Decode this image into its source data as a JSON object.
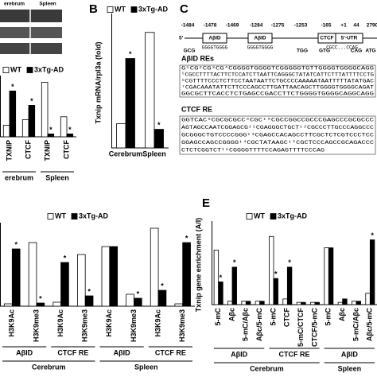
{
  "blot": {
    "groups": [
      "erebrum",
      "Spleen"
    ]
  },
  "chart_data": [
    {
      "type": "bar",
      "ylim": [
        0,
        1
      ],
      "groups": [
        {
          "name": "erebrum",
          "categories": [
            "TXNIP",
            "CTCF"
          ]
        },
        {
          "name": "Spleen",
          "categories": [
            "TXNIP",
            "CTCF"
          ]
        }
      ],
      "series": [
        {
          "name": "WT",
          "color": "#ffffff",
          "values": [
            0.2,
            0.3,
            0.95,
            0.35
          ],
          "significance": [
            null,
            null,
            null,
            null
          ]
        },
        {
          "name": "3xTg-AD",
          "color": "#000000",
          "values": [
            0.8,
            0.55,
            0.05,
            0.05
          ],
          "significance": [
            "*",
            "*",
            "*",
            "*"
          ]
        }
      ]
    },
    {
      "type": "bar",
      "panel": "B",
      "ylabel": "Txnip mRNA/rpl3a (fold)",
      "ylim": [
        0,
        7
      ],
      "categories": [
        "Cerebrum",
        "Spleen"
      ],
      "series": [
        {
          "name": "WT",
          "color": "#ffffff",
          "values": [
            1.3,
            6.2
          ],
          "significance": [
            null,
            null
          ]
        },
        {
          "name": "3xTg-AD",
          "color": "#000000",
          "values": [
            4.8,
            1.0
          ],
          "significance": [
            "*",
            "*"
          ]
        }
      ]
    },
    {
      "type": "bar",
      "ylim": [
        0,
        1
      ],
      "groups": [
        {
          "name": "Cerebrum",
          "subgroups": [
            {
              "name": "AβID",
              "categories": [
                "H3K9Ac",
                "H3K9me3"
              ]
            },
            {
              "name": "CTCF RE",
              "categories": [
                "H3K9Ac",
                "H3K9me3"
              ]
            }
          ]
        },
        {
          "name": "Spleen",
          "subgroups": [
            {
              "name": "AβID",
              "categories": [
                "H3K9Ac",
                "H3K9me3"
              ]
            },
            {
              "name": "CTCF RE",
              "categories": [
                "H3K9Ac",
                "H3K9me3"
              ]
            }
          ]
        }
      ],
      "series": [
        {
          "name": "WT",
          "color": "#ffffff",
          "values": [
            0.03,
            0.8,
            0.05,
            0.65,
            0.75,
            0.15,
            0.98,
            0.03
          ],
          "significance": [
            null,
            null,
            null,
            null,
            null,
            null,
            null,
            null
          ]
        },
        {
          "name": "3xTg-AD",
          "color": "#000000",
          "values": [
            0.72,
            0.04,
            0.55,
            0.13,
            0.75,
            0.1,
            0.2,
            0.8
          ],
          "significance": [
            "*",
            "*",
            "*",
            "*",
            null,
            "*",
            "*",
            "*"
          ]
        }
      ]
    },
    {
      "type": "bar",
      "panel": "E",
      "ylabel": "Txnip gene enrichment (A/I)",
      "ylim": [
        0,
        0.7
      ],
      "groups": [
        {
          "name": "Cerebrum",
          "subgroups": [
            {
              "name": "AβID",
              "categories": [
                "5-mC",
                "Aβc",
                "5-mC/Aβc",
                "Aβc/5-mC"
              ]
            },
            {
              "name": "CTCF RE",
              "categories": [
                "5-mC",
                "CTCF",
                "5-mC/CTCF",
                "CTCF/5-mC"
              ]
            }
          ]
        },
        {
          "name": "Spleen",
          "subgroups": [
            {
              "name": "AβID",
              "categories": [
                "5-mC",
                "Aβc",
                "5-mC/Aβc",
                "Aβc/5-mC"
              ]
            }
          ]
        }
      ],
      "series": [
        {
          "name": "WT",
          "color": "#ffffff",
          "values": [
            0.48,
            0.03,
            0.03,
            0.03,
            0.6,
            0.05,
            0.02,
            0.02,
            0.5,
            0.02,
            0.03,
            0.1
          ],
          "significance": [
            null,
            null,
            null,
            null,
            null,
            null,
            null,
            null,
            null,
            null,
            null,
            null
          ]
        },
        {
          "name": "3xTg-AD",
          "color": "#000000",
          "values": [
            0.2,
            0.33,
            0.03,
            0.03,
            0.23,
            0.33,
            0.02,
            0.02,
            0.5,
            0.05,
            0.03,
            0.57
          ],
          "significance": [
            "*",
            "*",
            null,
            null,
            "*",
            "*",
            null,
            null,
            null,
            null,
            null,
            "*"
          ]
        }
      ]
    }
  ],
  "diagram": {
    "panel": "C",
    "end": "5'",
    "positions": [
      "-1484",
      "-1478",
      "-1469",
      "-1284",
      "-1275",
      "-1253",
      "-165",
      "+1",
      "44",
      "2790"
    ],
    "boxes": [
      "AβID",
      "AβID",
      "CTCF",
      "5'-UTR"
    ],
    "sites": [
      "GCG",
      "GGGGTGGGG",
      "GGGGTGGGG",
      "TGG",
      "GTG",
      "CGCC...CCAG",
      "CAG",
      "ATG"
    ],
    "abid_title": "AβID REs",
    "abid_lines": [
      "G¹CG²CG³CG⁴CGGGGTGGGGTCGGGGGTGTTGGGGTGGGGCAGG",
      "⁵CGCCTTTTACTTCTCCATCTTAATTCAGGGCTATATCATTCTTTATTTTCCTG",
      "⁶CGTTTTCCCTCTTCCTAATAATTCTGCCCCAAAAATAATTTTTATATGAC",
      "⁷CGACAAATATTCTTCCCAGCCTTGATTAACAGCTTGGGGTGGGGCAGAT",
      "GGCGCTTCACCTCTGAGCCGACCTTCTGGGGTGGGGCAGGCAGG"
    ],
    "ctcf_title": "CTCF RE",
    "ctcf_lines": [
      "GGTCAC⁸CGCGCGCC⁹CGC¹⁰CGCCGGCCGCCCGAGCCCGCGCCC",
      "AGTAGCCAATCGGAGCG¹¹CGAGGGCTGCT¹²CGCCCTTGCCCAGGCCC",
      "GCGGGCTGTCCCCGGG¹³CGAGCCACAGCCTTCGCTCTCGTCCCTCC",
      "GGAGCCAGCCGGGG¹⁴CGCTATAAGC¹⁵CGCTCCCAGCCGCAGACCC",
      "CTCTCGGTCT¹⁶CGGGGTTTTCCAGAGTTTTCCCAG"
    ]
  }
}
